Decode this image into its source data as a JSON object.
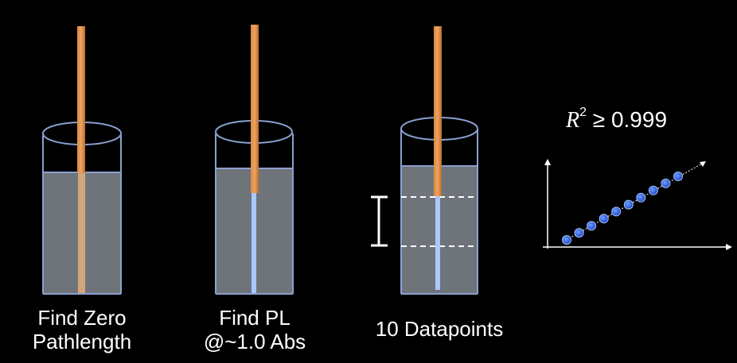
{
  "steps": [
    {
      "label_line1": "Find Zero",
      "label_line2": "Pathlength"
    },
    {
      "label_line1": "Find PL",
      "label_line2": "@~1.0 Abs"
    },
    {
      "label_line1": "10 Datapoints",
      "label_line2": ""
    }
  ],
  "fit": {
    "symbol": "R",
    "exponent": "2",
    "relation": "≥ 0.999"
  },
  "plot": {
    "points_count": 10
  },
  "colors": {
    "background": "#000000",
    "liquid": "#6f747b",
    "cup_outline": "#7f98c8",
    "probe": "#c87d3e",
    "light_beam": "#a9c8ff",
    "data_point": "#2f5fd6",
    "axes": "#ffffff"
  }
}
